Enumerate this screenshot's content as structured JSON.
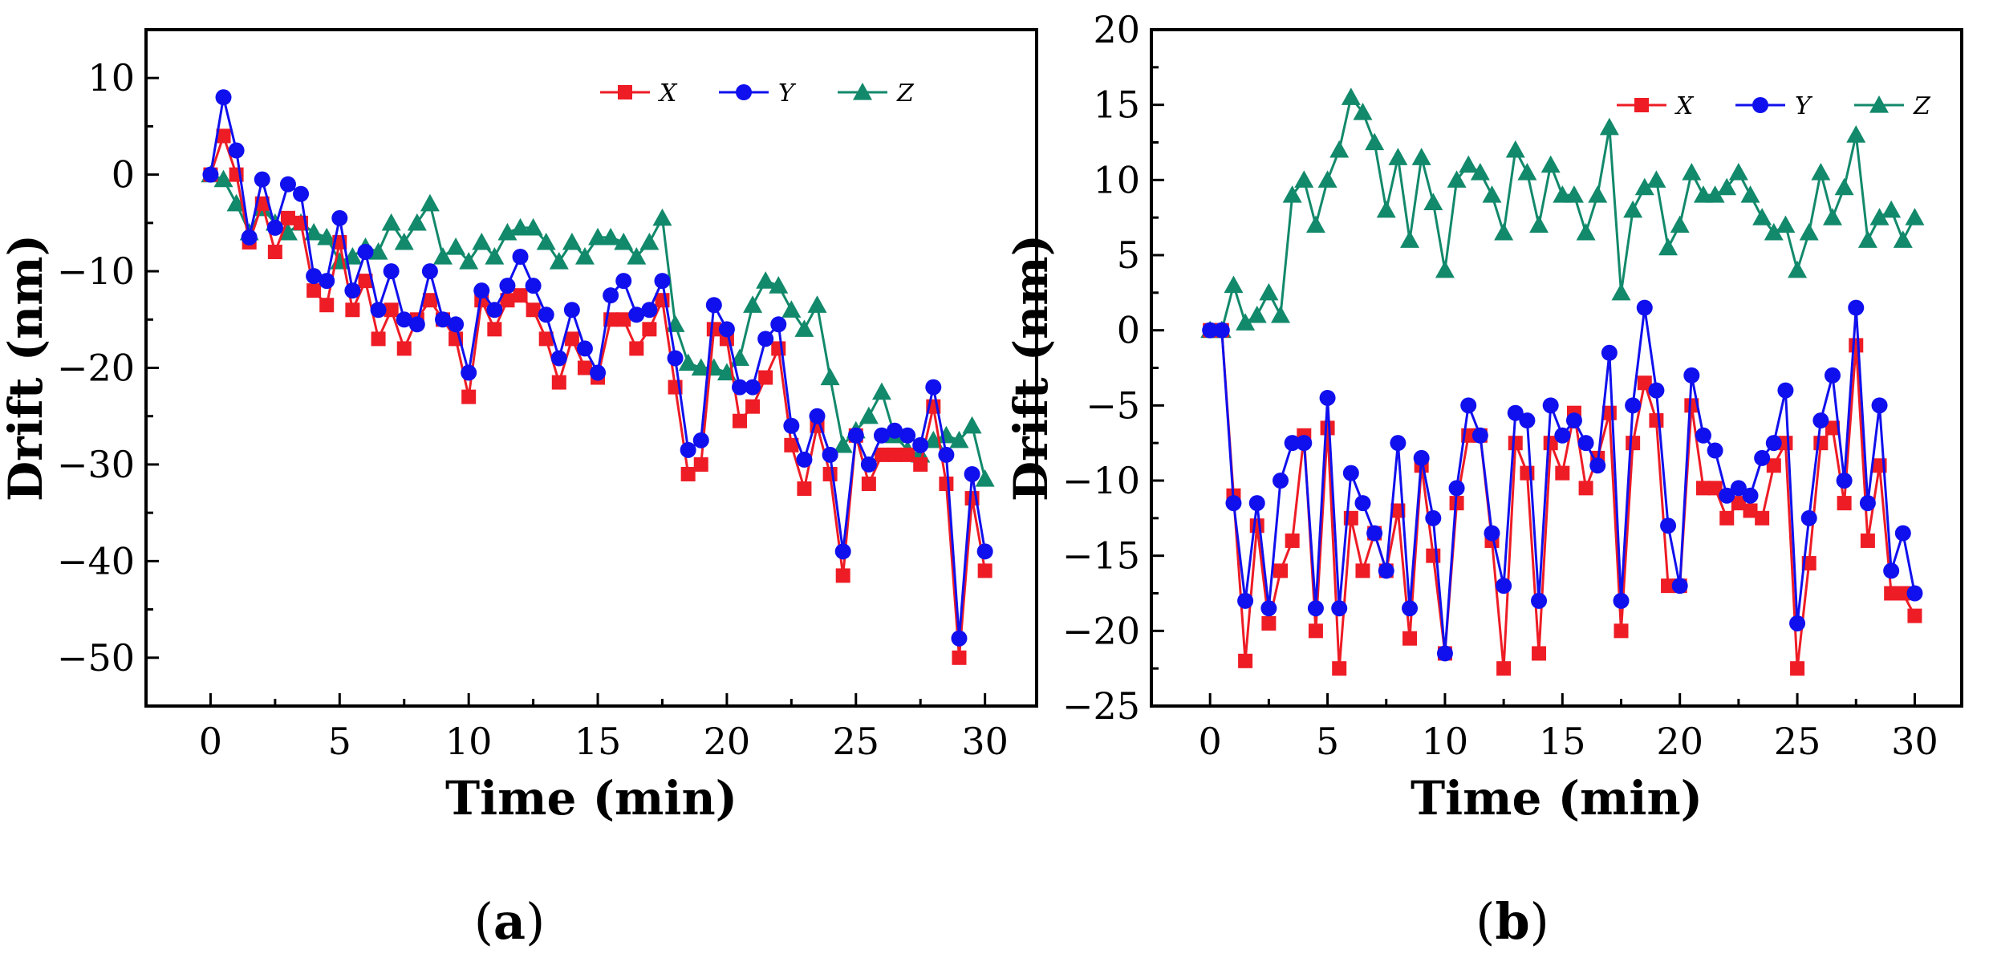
{
  "figure": {
    "panel_labels": [
      {
        "open": "(",
        "letter": "a",
        "close": ")"
      },
      {
        "open": "(",
        "letter": "b",
        "close": ")"
      }
    ]
  },
  "chart_data": [
    {
      "type": "line",
      "panel": "a",
      "title": "",
      "xlabel": "Time (min)",
      "ylabel": "Drift (nm)",
      "xlim": [
        -2.5,
        32
      ],
      "ylim": [
        -55,
        15
      ],
      "xticks": [
        0,
        5,
        10,
        15,
        20,
        25,
        30
      ],
      "yticks": [
        -50,
        -40,
        -30,
        -20,
        -10,
        0,
        10
      ],
      "x": [
        0,
        0.5,
        1,
        1.5,
        2,
        2.5,
        3,
        3.5,
        4,
        4.5,
        5,
        5.5,
        6,
        6.5,
        7,
        7.5,
        8,
        8.5,
        9,
        9.5,
        10,
        10.5,
        11,
        11.5,
        12,
        12.5,
        13,
        13.5,
        14,
        14.5,
        15,
        15.5,
        16,
        16.5,
        17,
        17.5,
        18,
        18.5,
        19,
        19.5,
        20,
        20.5,
        21,
        21.5,
        22,
        22.5,
        23,
        23.5,
        24,
        24.5,
        25,
        25.5,
        26,
        26.5,
        27,
        27.5,
        28,
        28.5,
        29,
        29.5,
        30
      ],
      "legend_position": "top-right",
      "series": [
        {
          "name": "X",
          "color": "#ee1c25",
          "marker": "square",
          "values": [
            0,
            4,
            0,
            -7,
            -3,
            -8,
            -4.5,
            -5,
            -12,
            -13.5,
            -7,
            -14,
            -11,
            -17,
            -14,
            -18,
            -15,
            -13,
            -15,
            -17,
            -23,
            -13,
            -16,
            -13,
            -12.5,
            -14,
            -17,
            -21.5,
            -17,
            -20,
            -21,
            -15,
            -15,
            -18,
            -16,
            -13,
            -22,
            -31,
            -30,
            -16,
            -17,
            -25.5,
            -24,
            -21,
            -18,
            -28,
            -32.5,
            -26,
            -31,
            -41.5,
            -27,
            -32,
            -29,
            -29,
            -29,
            -30,
            -24,
            -32,
            -50,
            -33.5,
            -41
          ]
        },
        {
          "name": "Y",
          "color": "#1010ee",
          "marker": "circle",
          "values": [
            0,
            8,
            2.5,
            -6.5,
            -0.5,
            -5.5,
            -1,
            -2,
            -10.5,
            -11,
            -4.5,
            -12,
            -8,
            -14,
            -10,
            -15,
            -15.5,
            -10,
            -15,
            -15.5,
            -20.5,
            -12,
            -14,
            -11.5,
            -8.5,
            -11.5,
            -14.5,
            -19,
            -14,
            -18,
            -20.5,
            -12.5,
            -11,
            -14.5,
            -14,
            -11,
            -19,
            -28.5,
            -27.5,
            -13.5,
            -16,
            -22,
            -22,
            -17,
            -15.5,
            -26,
            -29.5,
            -25,
            -29,
            -39,
            -27,
            -30,
            -27,
            -26.5,
            -27,
            -28,
            -22,
            -29,
            -48,
            -31,
            -39
          ]
        },
        {
          "name": "Z",
          "color": "#12896b",
          "marker": "triangle",
          "values": [
            0,
            -0.5,
            -3,
            -6,
            -3.5,
            -5,
            -6,
            -5,
            -6,
            -6.5,
            -9,
            -8.5,
            -7.5,
            -8,
            -5,
            -7,
            -5,
            -3,
            -8.5,
            -7.5,
            -9,
            -7,
            -8.5,
            -6,
            -5.5,
            -5.5,
            -7,
            -9,
            -7,
            -8.5,
            -6.5,
            -6.5,
            -7,
            -8.5,
            -7,
            -4.5,
            -15.5,
            -19.5,
            -20,
            -20,
            -20.5,
            -19,
            -13.5,
            -11,
            -11.5,
            -14,
            -16,
            -13.5,
            -21,
            -28,
            -26.5,
            -25,
            -22.5,
            -27,
            -28.5,
            -29,
            -27.5,
            -27,
            -27.5,
            -26,
            -31.5
          ]
        }
      ]
    },
    {
      "type": "line",
      "panel": "b",
      "title": "",
      "xlabel": "Time (min)",
      "ylabel": "Drift (nm)",
      "xlim": [
        -2.5,
        32
      ],
      "ylim": [
        -25,
        20
      ],
      "xticks": [
        0,
        5,
        10,
        15,
        20,
        25,
        30
      ],
      "yticks": [
        -25,
        -20,
        -15,
        -10,
        -5,
        0,
        5,
        10,
        15,
        20
      ],
      "x": [
        0,
        0.5,
        1,
        1.5,
        2,
        2.5,
        3,
        3.5,
        4,
        4.5,
        5,
        5.5,
        6,
        6.5,
        7,
        7.5,
        8,
        8.5,
        9,
        9.5,
        10,
        10.5,
        11,
        11.5,
        12,
        12.5,
        13,
        13.5,
        14,
        14.5,
        15,
        15.5,
        16,
        16.5,
        17,
        17.5,
        18,
        18.5,
        19,
        19.5,
        20,
        20.5,
        21,
        21.5,
        22,
        22.5,
        23,
        23.5,
        24,
        24.5,
        25,
        25.5,
        26,
        26.5,
        27,
        27.5,
        28,
        28.5,
        29,
        29.5,
        30
      ],
      "legend_position": "top-right",
      "series": [
        {
          "name": "X",
          "color": "#ee1c25",
          "marker": "square",
          "values": [
            0,
            0,
            -11,
            -22,
            -13,
            -19.5,
            -16,
            -14,
            -7,
            -20,
            -6.5,
            -22.5,
            -12.5,
            -16,
            -13.5,
            -16,
            -12,
            -20.5,
            -9,
            -15,
            -21.5,
            -11.5,
            -7,
            -7,
            -14,
            -22.5,
            -7.5,
            -9.5,
            -21.5,
            -7.5,
            -9.5,
            -5.5,
            -10.5,
            -8.5,
            -5.5,
            -20,
            -7.5,
            -3.5,
            -6,
            -17,
            -17,
            -5,
            -10.5,
            -10.5,
            -12.5,
            -11.5,
            -12,
            -12.5,
            -9,
            -7.5,
            -22.5,
            -15.5,
            -7.5,
            -6.5,
            -11.5,
            -1,
            -14,
            -9,
            -17.5,
            -17.5,
            -19
          ]
        },
        {
          "name": "Y",
          "color": "#1010ee",
          "marker": "circle",
          "values": [
            0,
            0,
            -11.5,
            -18,
            -11.5,
            -18.5,
            -10,
            -7.5,
            -7.5,
            -18.5,
            -4.5,
            -18.5,
            -9.5,
            -11.5,
            -13.5,
            -16,
            -7.5,
            -18.5,
            -8.5,
            -12.5,
            -21.5,
            -10.5,
            -5,
            -7,
            -13.5,
            -17,
            -5.5,
            -6,
            -18,
            -5,
            -7,
            -6,
            -7.5,
            -9,
            -1.5,
            -18,
            -5,
            1.5,
            -4,
            -13,
            -17,
            -3,
            -7,
            -8,
            -11,
            -10.5,
            -11,
            -8.5,
            -7.5,
            -4,
            -19.5,
            -12.5,
            -6,
            -3,
            -10,
            1.5,
            -11.5,
            -5,
            -16,
            -13.5,
            -17.5
          ]
        },
        {
          "name": "Z",
          "color": "#12896b",
          "marker": "triangle",
          "values": [
            0,
            0,
            3,
            0.5,
            1,
            2.5,
            1,
            9,
            10,
            7,
            10,
            12,
            15.5,
            14.5,
            12.5,
            8,
            11.5,
            6,
            11.5,
            8.5,
            4,
            10,
            11,
            10.5,
            9,
            6.5,
            12,
            10.5,
            7,
            11,
            9,
            9,
            6.5,
            9,
            13.5,
            2.5,
            8,
            9.5,
            10,
            5.5,
            7,
            10.5,
            9,
            9,
            9.5,
            10.5,
            9,
            7.5,
            6.5,
            7,
            4,
            6.5,
            10.5,
            7.5,
            9.5,
            13,
            6,
            7.5,
            8,
            6,
            7.5
          ]
        }
      ]
    }
  ]
}
